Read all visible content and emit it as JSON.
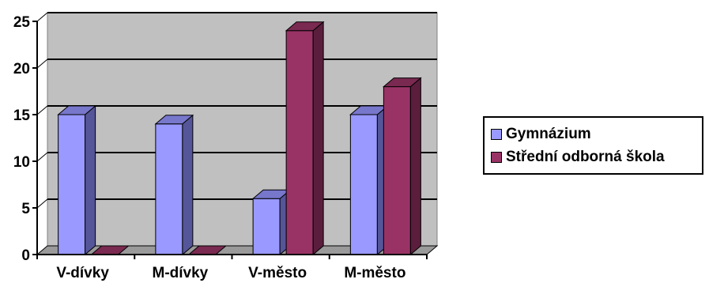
{
  "chart_data": {
    "type": "bar",
    "categories": [
      "V-dívky",
      "M-dívky",
      "V-město",
      "M-město"
    ],
    "series": [
      {
        "name": "Gymnázium",
        "values": [
          15,
          14,
          6,
          15
        ],
        "color": "#9999FF",
        "side_color": "#555599",
        "top_color": "#7777CC"
      },
      {
        "name": "Střední odborná škola",
        "values": [
          0,
          0,
          24,
          18
        ],
        "color": "#993366",
        "side_color": "#5A1E3C",
        "top_color": "#7A2950"
      }
    ],
    "y_ticks": [
      "0",
      "5",
      "10",
      "15",
      "20",
      "25"
    ],
    "ylim": [
      0,
      25
    ],
    "grid": true,
    "legend_position": "right",
    "background_color": "#C0C0C0"
  }
}
